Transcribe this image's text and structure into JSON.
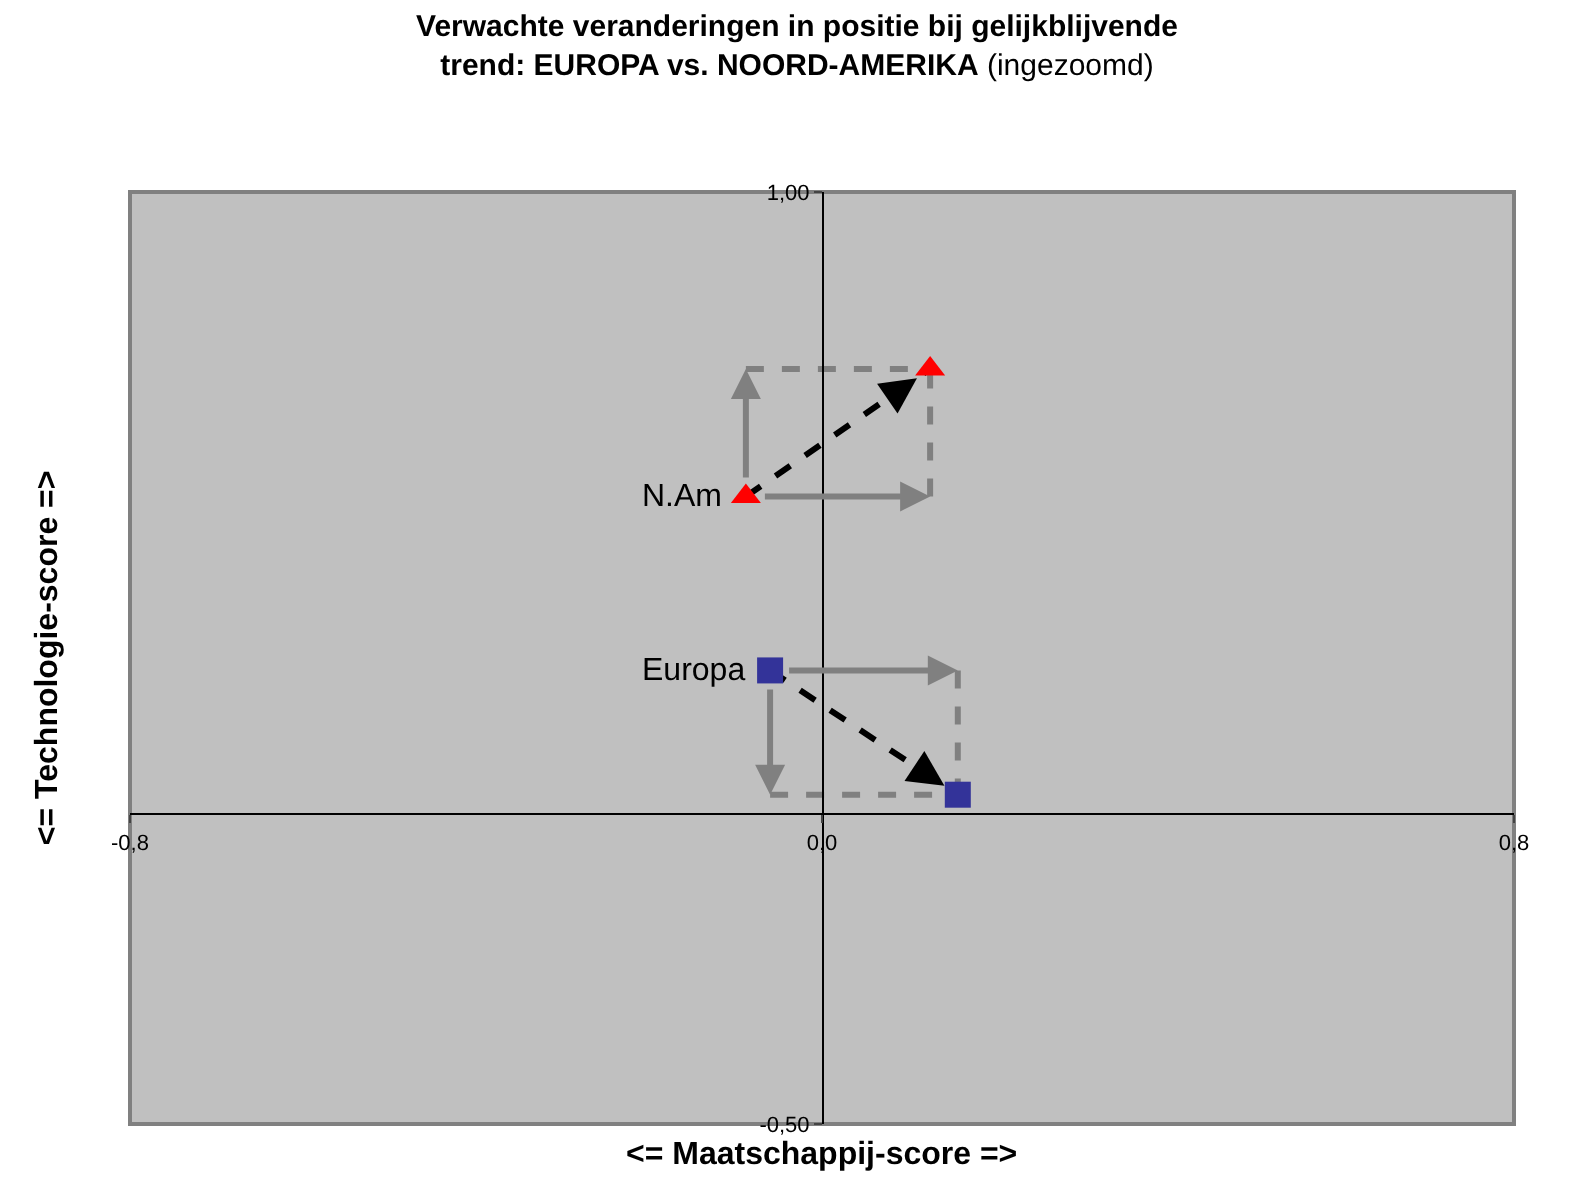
{
  "chart_data": {
    "type": "scatter",
    "title": "Verwachte veranderingen in positie bij gelijkblijvende\ntrend: EUROPA vs. NOORD-AMERIKA",
    "subtitle": "(ingezoomd)",
    "xlabel": "<= Maatschappij-score =>",
    "ylabel": "<= Technologie-score =>",
    "series": [
      {
        "name": "N.Am",
        "color": "#ff0000",
        "marker": "triangle",
        "x": [
          -0.088,
          0.125
        ],
        "values": [
          0.51,
          0.715
        ]
      },
      {
        "name": "Europa",
        "color": "#333399",
        "marker": "square",
        "x": [
          -0.06,
          0.157
        ],
        "values": [
          0.23,
          0.03
        ]
      }
    ],
    "xlim": [
      -0.8,
      0.8
    ],
    "ylim": [
      -0.5,
      1.0
    ],
    "xticks": [
      {
        "value": -0.8,
        "label": "-0,8"
      },
      {
        "value": 0,
        "label": "0,0"
      },
      {
        "value": 0.8,
        "label": "0,8"
      }
    ],
    "yticks": [
      {
        "value": -0.5,
        "label": "-0,50"
      },
      {
        "value": 1.0,
        "label": "1,00"
      }
    ],
    "grid": false,
    "legend": false
  }
}
